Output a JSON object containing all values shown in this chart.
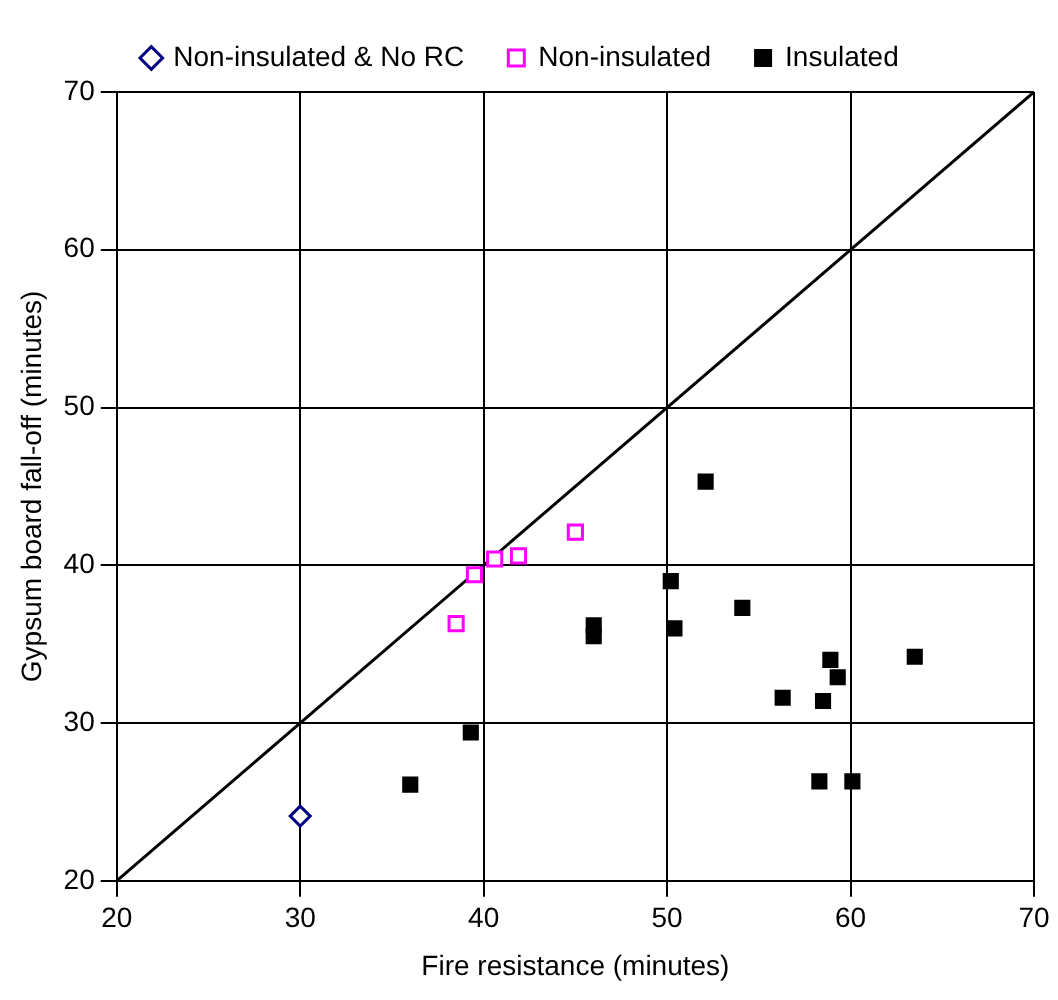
{
  "chart_data": {
    "type": "scatter",
    "xlabel": "Fire resistance (minutes)",
    "ylabel": "Gypsum board fall-off (minutes)",
    "xlim": [
      20,
      70
    ],
    "xticks": [
      20,
      30,
      40,
      50,
      60,
      70
    ],
    "ylim": [
      20,
      70
    ],
    "yticks": [
      20,
      30,
      40,
      50,
      60,
      70
    ],
    "grid": true,
    "legend": "top",
    "series": [
      {
        "name": "Non-insulated & No RC",
        "color": "#000080",
        "marker": "diamond",
        "x": [
          30
        ],
        "values": [
          24.1
        ]
      },
      {
        "name": "Non-insulated",
        "color": "#ff00ff",
        "marker": "square",
        "x": [
          38.5,
          39.5,
          40.6,
          41.9,
          45.0
        ],
        "values": [
          36.3,
          39.4,
          40.4,
          40.6,
          42.1
        ]
      },
      {
        "name": "Insulated",
        "color": "#000000",
        "marker": "square",
        "x": [
          36.0,
          39.3,
          46.0,
          46.0,
          52.1,
          50.2,
          50.4,
          54.1,
          58.9,
          59.3,
          56.3,
          58.5,
          63.5,
          58.3,
          60.1
        ],
        "values": [
          26.1,
          29.4,
          36.2,
          35.5,
          45.3,
          39.0,
          36.0,
          37.3,
          34.0,
          32.9,
          31.6,
          31.4,
          34.2,
          26.3,
          26.3
        ]
      },
      {
        "type": "line",
        "color": "#000000",
        "x": [
          20,
          70
        ],
        "values": [
          20,
          70
        ]
      }
    ]
  }
}
